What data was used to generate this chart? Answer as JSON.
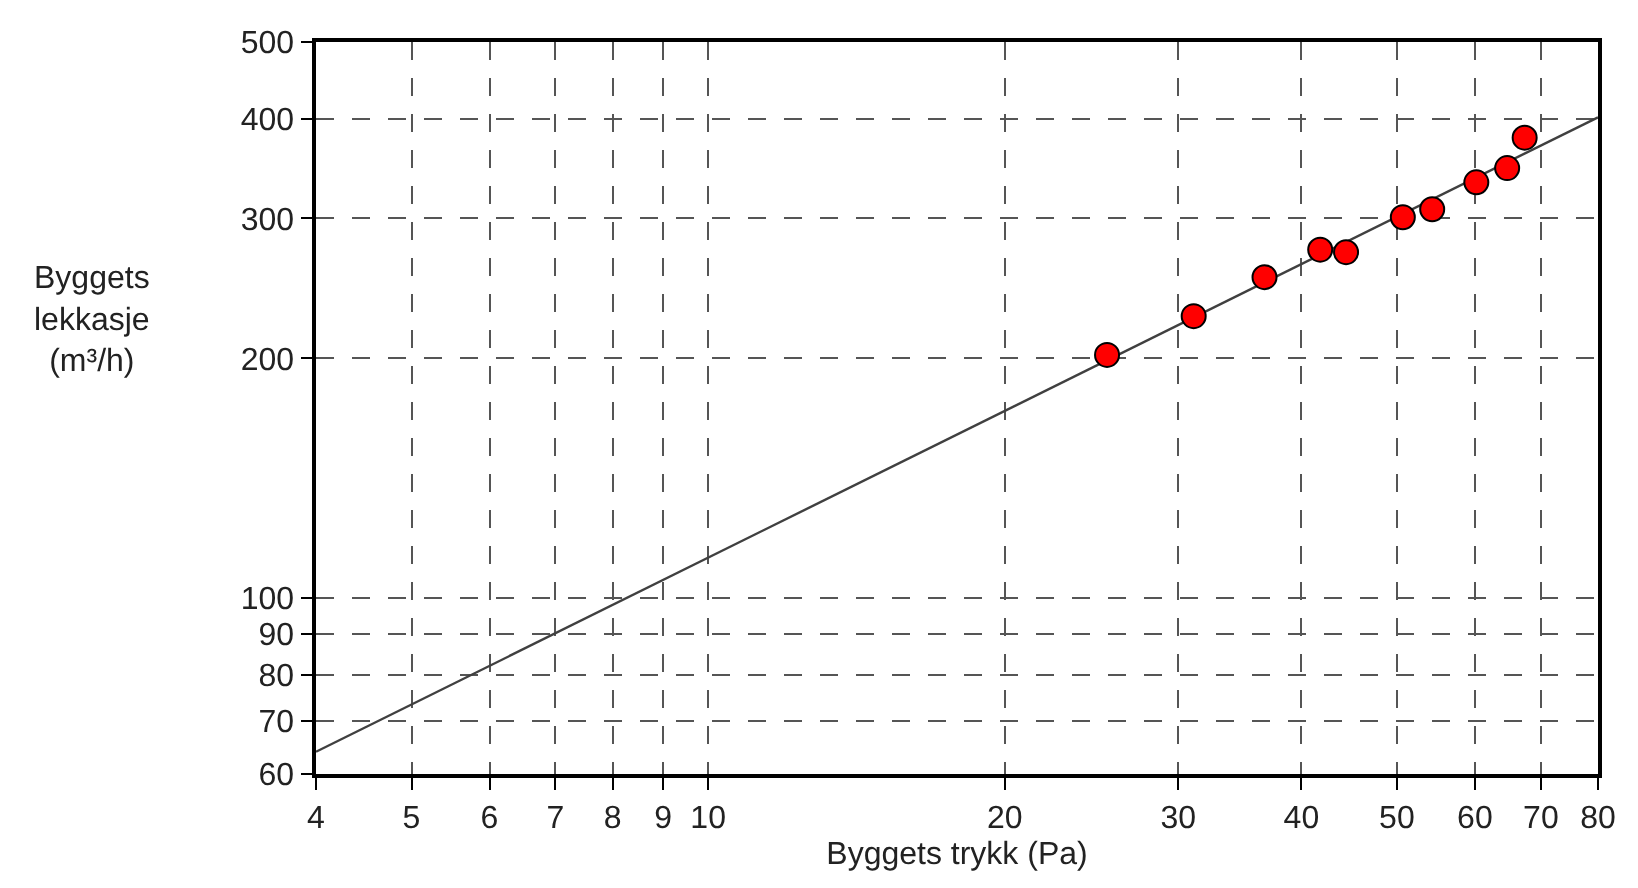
{
  "chart_data": {
    "type": "scatter",
    "xlabel": "Byggets trykk (Pa)",
    "ylabel": "Byggets\nlekkasje\n(m³/h)",
    "log": "xy",
    "grid": true,
    "marker": "circle",
    "xlim": [
      4,
      80
    ],
    "xticks": [
      4,
      5,
      6,
      7,
      8,
      9,
      10,
      20,
      30,
      40,
      50,
      60,
      70,
      80
    ],
    "ylim": [
      60,
      500
    ],
    "yticks": [
      60,
      70,
      80,
      90,
      100,
      200,
      300,
      400,
      500
    ],
    "series": [
      {
        "type": "line",
        "color": "#404040",
        "x": [
          4,
          80
        ],
        "values": [
          64,
          402
        ],
        "marker": "none",
        "line_style": "solid"
      },
      {
        "color": "#ff0000",
        "x": [
          25.4,
          31.1,
          36.7,
          41.8,
          44.4,
          50.7,
          54.3,
          60.2,
          64.7,
          67.4
        ],
        "values": [
          202,
          226,
          253,
          274,
          272,
          301,
          308,
          333,
          347,
          379
        ]
      }
    ]
  }
}
